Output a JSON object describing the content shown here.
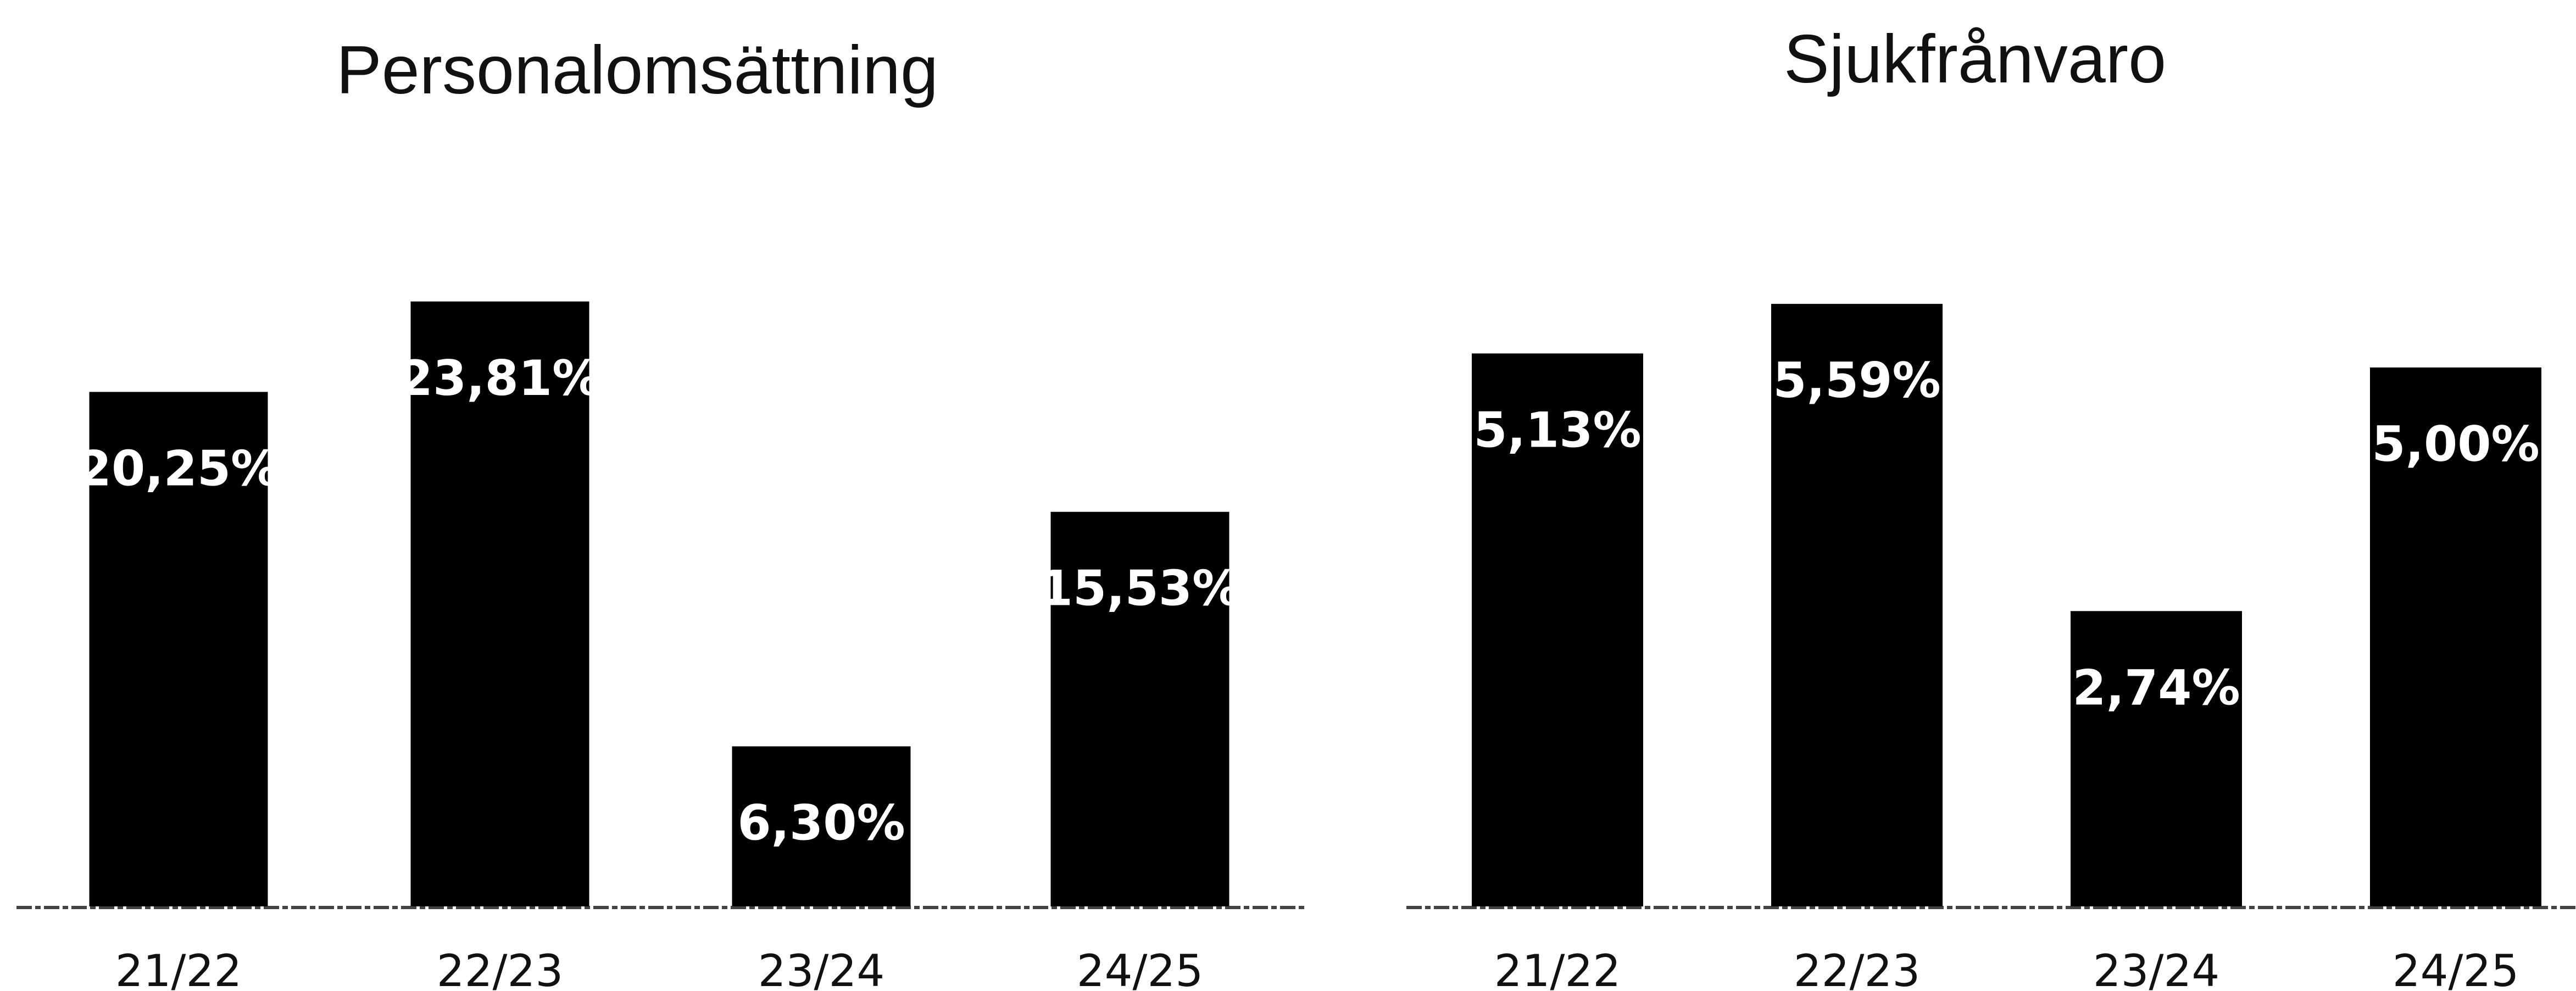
{
  "colors": {
    "bar": "#000000",
    "bar_label": "#ffffff",
    "text": "#111111",
    "background": "#ffffff"
  },
  "chart_data": [
    {
      "type": "bar",
      "title": "Personalomsättning",
      "categories": [
        "21/22",
        "22/23",
        "23/24",
        "24/25"
      ],
      "values": [
        20.25,
        23.81,
        6.3,
        15.53
      ],
      "data_labels": [
        "20,25%",
        "23,81%",
        "6,30%",
        "15,53%"
      ],
      "xlabel": "",
      "ylabel": "",
      "ylim": [
        0,
        28
      ],
      "grid": false,
      "legend": "none"
    },
    {
      "type": "bar",
      "title": "Sjukfrånvaro",
      "categories": [
        "21/22",
        "22/23",
        "23/24",
        "24/25"
      ],
      "values": [
        5.13,
        5.59,
        2.74,
        5.0
      ],
      "data_labels": [
        "5,13%",
        "5,59%",
        "2,74%",
        "5,00%"
      ],
      "xlabel": "",
      "ylabel": "",
      "ylim": [
        0,
        6.6
      ],
      "grid": false,
      "legend": "none"
    }
  ]
}
